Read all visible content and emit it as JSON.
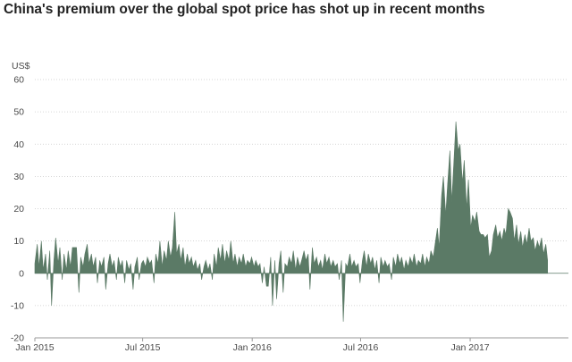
{
  "title": "China's premium over the global spot price has shot up in recent months",
  "unit_label": "US$",
  "colors": {
    "area": "#5b7a66",
    "grid": "#c8c8c8",
    "axis": "#9a9a9a",
    "text": "#4a4a4a",
    "title": "#222222"
  },
  "chart_data": {
    "type": "area",
    "title": "China's premium over the global spot price has shot up in recent months",
    "ylabel": "US$",
    "xlabel": "",
    "x_range": [
      "2015-01-01",
      "2017-06-15"
    ],
    "ylim": [
      -20,
      60
    ],
    "y_ticks": [
      -20,
      -10,
      0,
      10,
      20,
      30,
      40,
      50,
      60
    ],
    "y_tick_labels": [
      "-20",
      "-10",
      "0",
      "10",
      "20",
      "30",
      "40",
      "50",
      "60"
    ],
    "x_ticks": [
      "2015-01-01",
      "2015-07-01",
      "2016-01-01",
      "2016-07-01",
      "2017-01-01"
    ],
    "x_tick_labels": [
      "Jan 2015",
      "Jul 2015",
      "Jan 2016",
      "Jul 2016",
      "Jan 2017"
    ],
    "grid": "horizontal dotted",
    "legend": "none",
    "points": [
      [
        "2015-01-01",
        3
      ],
      [
        "2015-01-05",
        9
      ],
      [
        "2015-01-08",
        2
      ],
      [
        "2015-01-12",
        10
      ],
      [
        "2015-01-15",
        1
      ],
      [
        "2015-01-19",
        6
      ],
      [
        "2015-01-22",
        -2
      ],
      [
        "2015-01-26",
        7
      ],
      [
        "2015-01-29",
        -10
      ],
      [
        "2015-02-02",
        4
      ],
      [
        "2015-02-05",
        11
      ],
      [
        "2015-02-09",
        3
      ],
      [
        "2015-02-12",
        8
      ],
      [
        "2015-02-16",
        -2
      ],
      [
        "2015-02-19",
        6
      ],
      [
        "2015-02-23",
        1
      ],
      [
        "2015-02-26",
        7
      ],
      [
        "2015-03-02",
        2
      ],
      [
        "2015-03-05",
        8
      ],
      [
        "2015-03-09",
        8
      ],
      [
        "2015-03-12",
        8
      ],
      [
        "2015-03-16",
        -6
      ],
      [
        "2015-03-19",
        5
      ],
      [
        "2015-03-23",
        2
      ],
      [
        "2015-03-26",
        6
      ],
      [
        "2015-03-30",
        9
      ],
      [
        "2015-04-02",
        3
      ],
      [
        "2015-04-06",
        6
      ],
      [
        "2015-04-09",
        2
      ],
      [
        "2015-04-13",
        5
      ],
      [
        "2015-04-16",
        -3
      ],
      [
        "2015-04-20",
        4
      ],
      [
        "2015-04-23",
        2
      ],
      [
        "2015-04-27",
        5
      ],
      [
        "2015-04-30",
        -5
      ],
      [
        "2015-05-04",
        3
      ],
      [
        "2015-05-07",
        6
      ],
      [
        "2015-05-11",
        2
      ],
      [
        "2015-05-14",
        4
      ],
      [
        "2015-05-18",
        -2
      ],
      [
        "2015-05-21",
        5
      ],
      [
        "2015-05-25",
        2
      ],
      [
        "2015-05-28",
        4
      ],
      [
        "2015-06-01",
        -3
      ],
      [
        "2015-06-04",
        4
      ],
      [
        "2015-06-08",
        1
      ],
      [
        "2015-06-11",
        3
      ],
      [
        "2015-06-15",
        -5
      ],
      [
        "2015-06-18",
        2
      ],
      [
        "2015-06-22",
        5
      ],
      [
        "2015-06-25",
        -2
      ],
      [
        "2015-06-29",
        3
      ],
      [
        "2015-07-02",
        4
      ],
      [
        "2015-07-06",
        2
      ],
      [
        "2015-07-09",
        5
      ],
      [
        "2015-07-13",
        3
      ],
      [
        "2015-07-16",
        4
      ],
      [
        "2015-07-20",
        -3
      ],
      [
        "2015-07-23",
        6
      ],
      [
        "2015-07-27",
        3
      ],
      [
        "2015-07-30",
        10
      ],
      [
        "2015-08-03",
        2
      ],
      [
        "2015-08-06",
        7
      ],
      [
        "2015-08-10",
        4
      ],
      [
        "2015-08-13",
        10
      ],
      [
        "2015-08-17",
        5
      ],
      [
        "2015-08-20",
        8
      ],
      [
        "2015-08-24",
        19
      ],
      [
        "2015-08-27",
        6
      ],
      [
        "2015-08-31",
        9
      ],
      [
        "2015-09-03",
        4
      ],
      [
        "2015-09-07",
        8
      ],
      [
        "2015-09-10",
        2
      ],
      [
        "2015-09-14",
        6
      ],
      [
        "2015-09-17",
        3
      ],
      [
        "2015-09-21",
        5
      ],
      [
        "2015-09-24",
        2
      ],
      [
        "2015-09-28",
        4
      ],
      [
        "2015-10-01",
        1
      ],
      [
        "2015-10-05",
        3
      ],
      [
        "2015-10-08",
        -2
      ],
      [
        "2015-10-12",
        2
      ],
      [
        "2015-10-15",
        4
      ],
      [
        "2015-10-19",
        1
      ],
      [
        "2015-10-22",
        3
      ],
      [
        "2015-10-26",
        -2
      ],
      [
        "2015-10-29",
        6
      ],
      [
        "2015-11-02",
        2
      ],
      [
        "2015-11-05",
        8
      ],
      [
        "2015-11-09",
        4
      ],
      [
        "2015-11-12",
        9
      ],
      [
        "2015-11-16",
        3
      ],
      [
        "2015-11-19",
        7
      ],
      [
        "2015-11-23",
        4
      ],
      [
        "2015-11-26",
        10
      ],
      [
        "2015-11-30",
        3
      ],
      [
        "2015-12-03",
        6
      ],
      [
        "2015-12-07",
        2
      ],
      [
        "2015-12-10",
        5
      ],
      [
        "2015-12-14",
        3
      ],
      [
        "2015-12-17",
        6
      ],
      [
        "2015-12-21",
        2
      ],
      [
        "2015-12-24",
        4
      ],
      [
        "2015-12-28",
        3
      ],
      [
        "2015-12-31",
        5
      ],
      [
        "2016-01-04",
        2
      ],
      [
        "2016-01-07",
        4
      ],
      [
        "2016-01-11",
        2
      ],
      [
        "2016-01-14",
        3
      ],
      [
        "2016-01-18",
        -3
      ],
      [
        "2016-01-21",
        2
      ],
      [
        "2016-01-25",
        -4
      ],
      [
        "2016-01-28",
        -4
      ],
      [
        "2016-02-01",
        5
      ],
      [
        "2016-02-04",
        -10
      ],
      [
        "2016-02-08",
        4
      ],
      [
        "2016-02-11",
        -8
      ],
      [
        "2016-02-15",
        3
      ],
      [
        "2016-02-18",
        7
      ],
      [
        "2016-02-22",
        -6
      ],
      [
        "2016-02-25",
        3
      ],
      [
        "2016-02-29",
        2
      ],
      [
        "2016-03-03",
        5
      ],
      [
        "2016-03-07",
        3
      ],
      [
        "2016-03-10",
        7
      ],
      [
        "2016-03-14",
        1
      ],
      [
        "2016-03-17",
        5
      ],
      [
        "2016-03-21",
        2
      ],
      [
        "2016-03-24",
        4
      ],
      [
        "2016-03-28",
        7
      ],
      [
        "2016-03-31",
        4
      ],
      [
        "2016-04-04",
        6
      ],
      [
        "2016-04-07",
        -5
      ],
      [
        "2016-04-11",
        8
      ],
      [
        "2016-04-14",
        3
      ],
      [
        "2016-04-18",
        5
      ],
      [
        "2016-04-21",
        2
      ],
      [
        "2016-04-25",
        4
      ],
      [
        "2016-04-28",
        1
      ],
      [
        "2016-05-02",
        6
      ],
      [
        "2016-05-05",
        3
      ],
      [
        "2016-05-09",
        5
      ],
      [
        "2016-05-12",
        2
      ],
      [
        "2016-05-16",
        4
      ],
      [
        "2016-05-19",
        2
      ],
      [
        "2016-05-23",
        3
      ],
      [
        "2016-05-26",
        -2
      ],
      [
        "2016-05-30",
        4
      ],
      [
        "2016-06-02",
        -15
      ],
      [
        "2016-06-06",
        3
      ],
      [
        "2016-06-09",
        2
      ],
      [
        "2016-06-13",
        6
      ],
      [
        "2016-06-16",
        2
      ],
      [
        "2016-06-20",
        4
      ],
      [
        "2016-06-23",
        2
      ],
      [
        "2016-06-27",
        3
      ],
      [
        "2016-06-30",
        -3
      ],
      [
        "2016-07-04",
        4
      ],
      [
        "2016-07-07",
        7
      ],
      [
        "2016-07-11",
        2
      ],
      [
        "2016-07-14",
        6
      ],
      [
        "2016-07-18",
        3
      ],
      [
        "2016-07-21",
        5
      ],
      [
        "2016-07-25",
        1
      ],
      [
        "2016-07-28",
        4
      ],
      [
        "2016-08-01",
        -3
      ],
      [
        "2016-08-04",
        5
      ],
      [
        "2016-08-08",
        2
      ],
      [
        "2016-08-11",
        4
      ],
      [
        "2016-08-15",
        2
      ],
      [
        "2016-08-18",
        3
      ],
      [
        "2016-08-22",
        -2
      ],
      [
        "2016-08-25",
        5
      ],
      [
        "2016-08-29",
        2
      ],
      [
        "2016-09-01",
        6
      ],
      [
        "2016-09-05",
        3
      ],
      [
        "2016-09-08",
        5
      ],
      [
        "2016-09-12",
        1
      ],
      [
        "2016-09-15",
        4
      ],
      [
        "2016-09-19",
        2
      ],
      [
        "2016-09-22",
        5
      ],
      [
        "2016-09-26",
        3
      ],
      [
        "2016-09-29",
        6
      ],
      [
        "2016-10-03",
        2
      ],
      [
        "2016-10-06",
        4
      ],
      [
        "2016-10-10",
        3
      ],
      [
        "2016-10-13",
        6
      ],
      [
        "2016-10-17",
        2
      ],
      [
        "2016-10-20",
        5
      ],
      [
        "2016-10-24",
        3
      ],
      [
        "2016-10-27",
        7
      ],
      [
        "2016-10-31",
        5
      ],
      [
        "2016-11-03",
        9
      ],
      [
        "2016-11-07",
        14
      ],
      [
        "2016-11-10",
        8
      ],
      [
        "2016-11-14",
        24
      ],
      [
        "2016-11-17",
        30
      ],
      [
        "2016-11-21",
        18
      ],
      [
        "2016-11-24",
        27
      ],
      [
        "2016-11-28",
        38
      ],
      [
        "2016-12-01",
        22
      ],
      [
        "2016-12-05",
        36
      ],
      [
        "2016-12-08",
        47
      ],
      [
        "2016-12-12",
        38
      ],
      [
        "2016-12-15",
        40
      ],
      [
        "2016-12-19",
        28
      ],
      [
        "2016-12-22",
        35
      ],
      [
        "2016-12-26",
        20
      ],
      [
        "2016-12-29",
        29
      ],
      [
        "2017-01-02",
        14
      ],
      [
        "2017-01-05",
        18
      ],
      [
        "2017-01-09",
        16
      ],
      [
        "2017-01-12",
        19
      ],
      [
        "2017-01-16",
        13
      ],
      [
        "2017-01-19",
        12
      ],
      [
        "2017-01-23",
        12
      ],
      [
        "2017-01-26",
        11
      ],
      [
        "2017-01-30",
        12
      ],
      [
        "2017-02-02",
        5
      ],
      [
        "2017-02-06",
        7
      ],
      [
        "2017-02-09",
        12
      ],
      [
        "2017-02-13",
        15
      ],
      [
        "2017-02-16",
        11
      ],
      [
        "2017-02-20",
        13
      ],
      [
        "2017-02-23",
        10
      ],
      [
        "2017-02-27",
        14
      ],
      [
        "2017-03-02",
        12
      ],
      [
        "2017-03-06",
        20
      ],
      [
        "2017-03-09",
        19
      ],
      [
        "2017-03-13",
        17
      ],
      [
        "2017-03-16",
        10
      ],
      [
        "2017-03-20",
        15
      ],
      [
        "2017-03-23",
        9
      ],
      [
        "2017-03-27",
        13
      ],
      [
        "2017-03-30",
        8
      ],
      [
        "2017-04-03",
        12
      ],
      [
        "2017-04-06",
        9
      ],
      [
        "2017-04-10",
        14
      ],
      [
        "2017-04-13",
        10
      ],
      [
        "2017-04-17",
        11
      ],
      [
        "2017-04-20",
        7
      ],
      [
        "2017-04-24",
        10
      ],
      [
        "2017-04-27",
        8
      ],
      [
        "2017-05-01",
        11
      ],
      [
        "2017-05-04",
        6
      ],
      [
        "2017-05-08",
        9
      ],
      [
        "2017-05-11",
        4
      ]
    ]
  }
}
